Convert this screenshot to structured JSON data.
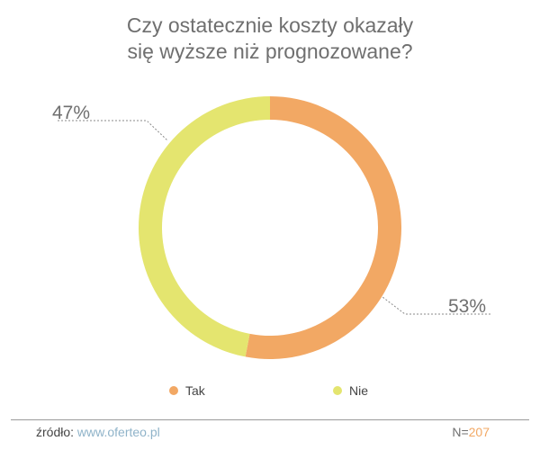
{
  "title_lines": [
    "Czy ostatecznie koszty okazały",
    "się wyższe niż prognozowane?"
  ],
  "chart_data": {
    "type": "pie",
    "donut": true,
    "title": "Czy ostatecznie koszty okazały się wyższe niż prognozowane?",
    "categories": [
      "Tak",
      "Nie"
    ],
    "values": [
      53,
      47
    ],
    "labels": [
      "53%",
      "47%"
    ],
    "colors": [
      "#f2a864",
      "#e4e56f"
    ],
    "legend_position": "bottom"
  },
  "legend": [
    {
      "label": "Tak",
      "color": "#f2a864"
    },
    {
      "label": "Nie",
      "color": "#e4e56f"
    }
  ],
  "footer": {
    "source_label": "źródło:",
    "source_link": "www.oferteo.pl",
    "n_label": "N=",
    "n_value": "207"
  }
}
